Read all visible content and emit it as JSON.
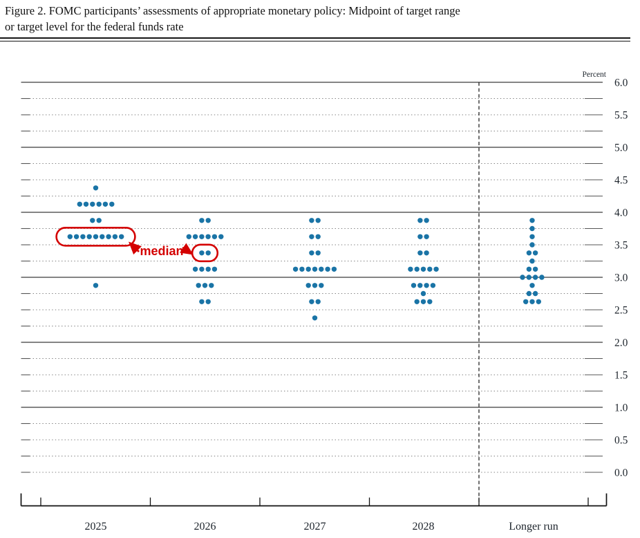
{
  "title": {
    "line1": "Figure 2. FOMC participants’ assessments of appropriate monetary policy: Midpoint of target range",
    "line2": "or target level for the federal funds rate"
  },
  "chart_data": {
    "type": "scatter",
    "subtype": "fomc-dot-plot",
    "unit_label": "Percent",
    "y_axis": {
      "min": 0.0,
      "max": 6.0,
      "gridline_step": 0.25,
      "label_step": 0.5,
      "solid_lines": [
        1,
        2,
        3,
        4,
        5,
        6
      ],
      "tick_labels": [
        "6.0",
        "5.5",
        "5.0",
        "4.5",
        "4.0",
        "3.5",
        "3.0",
        "2.5",
        "2.0",
        "1.5",
        "1.0",
        "0.5",
        "0.0"
      ]
    },
    "x_categories": [
      "2025",
      "2026",
      "2027",
      "2028",
      "Longer run"
    ],
    "columns": [
      {
        "label": "2025",
        "dots": [
          {
            "rate": 4.375,
            "count": 1
          },
          {
            "rate": 4.125,
            "count": 6
          },
          {
            "rate": 3.875,
            "count": 2
          },
          {
            "rate": 3.625,
            "count": 9
          },
          {
            "rate": 2.875,
            "count": 1
          }
        ],
        "median": 3.625
      },
      {
        "label": "2026",
        "dots": [
          {
            "rate": 3.875,
            "count": 2
          },
          {
            "rate": 3.625,
            "count": 6
          },
          {
            "rate": 3.375,
            "count": 2
          },
          {
            "rate": 3.125,
            "count": 4
          },
          {
            "rate": 2.875,
            "count": 3
          },
          {
            "rate": 2.625,
            "count": 2
          }
        ],
        "median": 3.375
      },
      {
        "label": "2027",
        "dots": [
          {
            "rate": 3.875,
            "count": 2
          },
          {
            "rate": 3.625,
            "count": 2
          },
          {
            "rate": 3.375,
            "count": 2
          },
          {
            "rate": 3.125,
            "count": 7
          },
          {
            "rate": 2.875,
            "count": 3
          },
          {
            "rate": 2.625,
            "count": 2
          },
          {
            "rate": 2.375,
            "count": 1
          }
        ],
        "median": 3.125
      },
      {
        "label": "2028",
        "dots": [
          {
            "rate": 3.875,
            "count": 2
          },
          {
            "rate": 3.625,
            "count": 2
          },
          {
            "rate": 3.375,
            "count": 2
          },
          {
            "rate": 3.125,
            "count": 5
          },
          {
            "rate": 2.875,
            "count": 4
          },
          {
            "rate": 2.75,
            "count": 1
          },
          {
            "rate": 2.625,
            "count": 3
          }
        ],
        "median": 3.125
      },
      {
        "label": "Longer run",
        "dots": [
          {
            "rate": 3.875,
            "count": 1
          },
          {
            "rate": 3.75,
            "count": 1
          },
          {
            "rate": 3.625,
            "count": 1
          },
          {
            "rate": 3.5,
            "count": 1
          },
          {
            "rate": 3.375,
            "count": 2
          },
          {
            "rate": 3.25,
            "count": 1
          },
          {
            "rate": 3.125,
            "count": 2
          },
          {
            "rate": 3.0,
            "count": 4
          },
          {
            "rate": 2.875,
            "count": 1
          },
          {
            "rate": 2.75,
            "count": 2
          },
          {
            "rate": 2.625,
            "count": 3
          }
        ],
        "median": 3.0
      }
    ],
    "annotation": {
      "label": "median",
      "circled": [
        {
          "column_index": 0,
          "rate": 3.625
        },
        {
          "column_index": 1,
          "rate": 3.375
        }
      ]
    },
    "colors": {
      "dot": "#1a74a6",
      "annotation": "#d40000",
      "grid_dotted": "#7d7d7d",
      "grid_solid": "#3a3a3a",
      "axis": "#111111",
      "text": "#1c232b"
    }
  }
}
